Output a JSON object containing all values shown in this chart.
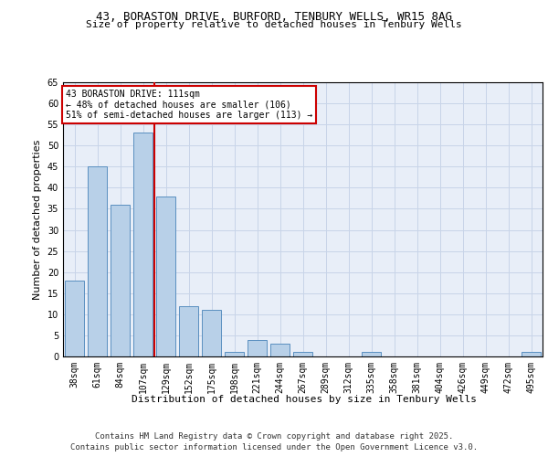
{
  "title_line1": "43, BORASTON DRIVE, BURFORD, TENBURY WELLS, WR15 8AG",
  "title_line2": "Size of property relative to detached houses in Tenbury Wells",
  "xlabel": "Distribution of detached houses by size in Tenbury Wells",
  "ylabel": "Number of detached properties",
  "categories": [
    "38sqm",
    "61sqm",
    "84sqm",
    "107sqm",
    "129sqm",
    "152sqm",
    "175sqm",
    "198sqm",
    "221sqm",
    "244sqm",
    "267sqm",
    "289sqm",
    "312sqm",
    "335sqm",
    "358sqm",
    "381sqm",
    "404sqm",
    "426sqm",
    "449sqm",
    "472sqm",
    "495sqm"
  ],
  "values": [
    18,
    45,
    36,
    53,
    38,
    12,
    11,
    1,
    4,
    3,
    1,
    0,
    0,
    1,
    0,
    0,
    0,
    0,
    0,
    0,
    1
  ],
  "bar_color": "#b8d0e8",
  "bar_edge_color": "#5a8fc0",
  "vline_color": "#cc0000",
  "vline_x_index": 3,
  "annotation_text": "43 BORASTON DRIVE: 111sqm\n← 48% of detached houses are smaller (106)\n51% of semi-detached houses are larger (113) →",
  "annotation_box_color": "#ffffff",
  "annotation_box_edge": "#cc0000",
  "ylim": [
    0,
    65
  ],
  "yticks": [
    0,
    5,
    10,
    15,
    20,
    25,
    30,
    35,
    40,
    45,
    50,
    55,
    60,
    65
  ],
  "grid_color": "#c8d4e8",
  "background_color": "#e8eef8",
  "footer_line1": "Contains HM Land Registry data © Crown copyright and database right 2025.",
  "footer_line2": "Contains public sector information licensed under the Open Government Licence v3.0.",
  "title_fontsize": 9,
  "subtitle_fontsize": 8,
  "tick_fontsize": 7,
  "ylabel_fontsize": 8,
  "xlabel_fontsize": 8,
  "annotation_fontsize": 7,
  "footer_fontsize": 6.5
}
